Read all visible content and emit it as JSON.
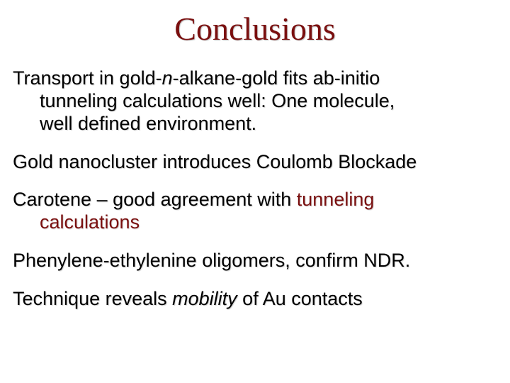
{
  "slide": {
    "background_color": "#ffffff",
    "title": {
      "text": "Conclusions",
      "color": "#7a0f0f",
      "font_family": "Times New Roman",
      "font_size_pt": 34
    },
    "body_text_color": "#000000",
    "body_font_family": "Arial",
    "body_font_size_pt": 20,
    "accent_color": "#7a0f0f",
    "paragraphs": {
      "p1": {
        "line1_a": "Transport in gold-",
        "line1_n": "n",
        "line1_b": "-alkane-gold fits ab-initio",
        "line2": "tunneling calculations well:  One molecule,",
        "line3": "well defined environment."
      },
      "p2": "Gold nanocluster introduces Coulomb Blockade",
      "p3": {
        "line1_a": "Carotene – good agreement with ",
        "line1_accent": "tunneling",
        "line2_accent": "calculations"
      },
      "p4": "Phenylene-ethylenine oligomers, confirm NDR.",
      "p5": {
        "a": "Technique reveals ",
        "mobility": "mobility",
        "b": " of Au contacts"
      }
    }
  }
}
